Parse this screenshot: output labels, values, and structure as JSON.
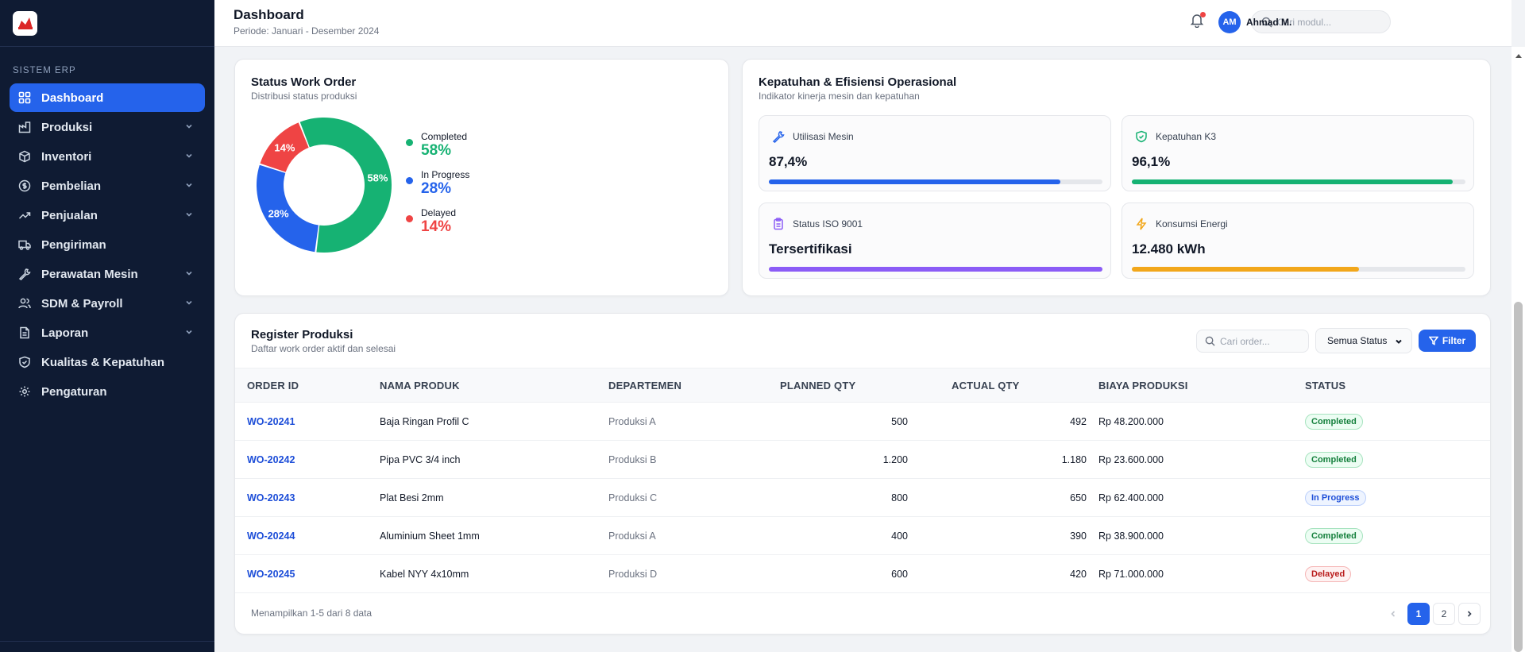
{
  "sidebar": {
    "section_label": "SISTEM ERP",
    "items": [
      {
        "label": "Dashboard"
      },
      {
        "label": "Produksi"
      },
      {
        "label": "Inventori"
      },
      {
        "label": "Pembelian"
      },
      {
        "label": "Penjualan"
      },
      {
        "label": "Pengiriman"
      },
      {
        "label": "Perawatan Mesin"
      },
      {
        "label": "SDM & Payroll"
      },
      {
        "label": "Laporan"
      },
      {
        "label": "Kualitas & Kepatuhan"
      },
      {
        "label": "Pengaturan"
      }
    ]
  },
  "header": {
    "title": "Dashboard",
    "period": "Periode: Januari - Desember 2024",
    "search_placeholder": "Cari modul...",
    "user_initials": "AM",
    "user_name": "Ahmad M."
  },
  "work_order": {
    "title": "Status Work Order",
    "subtitle": "Distribusi status produksi",
    "chart_data": {
      "type": "pie",
      "categories": [
        "Completed",
        "In Progress",
        "Delayed"
      ],
      "values": [
        58,
        28,
        14
      ],
      "labels": [
        "58%",
        "28%",
        "14%"
      ],
      "colors": [
        "#16b273",
        "#2563eb",
        "#ef4444"
      ]
    }
  },
  "compliance": {
    "title": "Kepatuhan & Efisiensi Operasional",
    "subtitle": "Indikator kinerja mesin dan kepatuhan",
    "kpis": [
      {
        "label": "Utilisasi Mesin",
        "value": "87,4%",
        "progress": 0.874,
        "color": "#2563eb",
        "icon": "wrench-icon"
      },
      {
        "label": "Kepatuhan K3",
        "value": "96,1%",
        "progress": 0.961,
        "color": "#16b273",
        "icon": "shield-check-icon"
      },
      {
        "label": "Status ISO 9001",
        "value": "Tersertifikasi",
        "progress": 1.0,
        "color": "#8b5cf6",
        "icon": "clipboard-icon"
      },
      {
        "label": "Konsumsi Energi",
        "value": "12.480 kWh",
        "progress": 0.68,
        "color": "#f2a71b",
        "icon": "lightning-icon"
      }
    ]
  },
  "register": {
    "title": "Register Produksi",
    "subtitle": "Daftar work order aktif dan selesai",
    "search_placeholder": "Cari order...",
    "status_select": "Semua Status",
    "filter_label": "Filter",
    "columns": [
      "ORDER ID",
      "NAMA PRODUK",
      "DEPARTEMEN",
      "PLANNED QTY",
      "ACTUAL QTY",
      "BIAYA PRODUKSI",
      "STATUS"
    ],
    "rows": [
      {
        "id": "WO-20241",
        "product": "Baja Ringan Profil C",
        "dept": "Produksi A",
        "planned": "500",
        "actual": "492",
        "cost": "Rp 48.200.000",
        "status": "Completed",
        "status_key": "completed"
      },
      {
        "id": "WO-20242",
        "product": "Pipa PVC 3/4 inch",
        "dept": "Produksi B",
        "planned": "1.200",
        "actual": "1.180",
        "cost": "Rp 23.600.000",
        "status": "Completed",
        "status_key": "completed"
      },
      {
        "id": "WO-20243",
        "product": "Plat Besi 2mm",
        "dept": "Produksi C",
        "planned": "800",
        "actual": "650",
        "cost": "Rp 62.400.000",
        "status": "In Progress",
        "status_key": "progress"
      },
      {
        "id": "WO-20244",
        "product": "Aluminium Sheet 1mm",
        "dept": "Produksi A",
        "planned": "400",
        "actual": "390",
        "cost": "Rp 38.900.000",
        "status": "Completed",
        "status_key": "completed"
      },
      {
        "id": "WO-20245",
        "product": "Kabel NYY 4x10mm",
        "dept": "Produksi D",
        "planned": "600",
        "actual": "420",
        "cost": "Rp 71.000.000",
        "status": "Delayed",
        "status_key": "delayed"
      }
    ],
    "footer": "Menampilkan 1-5 dari 8 data",
    "pages": [
      "1",
      "2"
    ]
  }
}
